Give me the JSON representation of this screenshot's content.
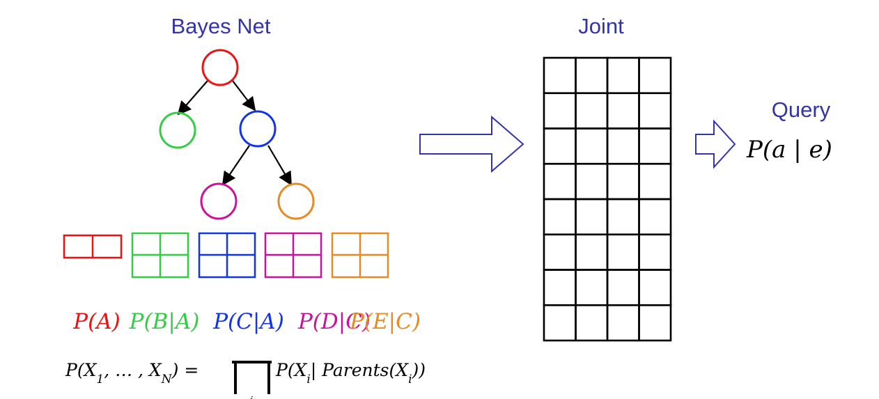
{
  "titles": {
    "bayes_net": "Bayes Net",
    "joint": "Joint",
    "query": "Query"
  },
  "colors": {
    "title": "#3333aa",
    "node_a": "#ee1111",
    "node_b": "#33cc44",
    "node_c": "#1133ee",
    "node_d": "#cc1199",
    "node_e": "#e88a22",
    "edge": "#000000",
    "grid": "#000000",
    "arrow": "#3333aa"
  },
  "graph": {
    "nodes": [
      "A",
      "B",
      "C",
      "D",
      "E"
    ],
    "edges": [
      [
        "A",
        "B"
      ],
      [
        "A",
        "C"
      ],
      [
        "C",
        "D"
      ],
      [
        "C",
        "E"
      ]
    ]
  },
  "factors": [
    {
      "label": "P(A)",
      "color": "#ee1111",
      "rows": 1,
      "cols": 2
    },
    {
      "label": "P(B|A)",
      "color": "#33cc44",
      "rows": 2,
      "cols": 2
    },
    {
      "label": "P(C|A)",
      "color": "#1133ee",
      "rows": 2,
      "cols": 2
    },
    {
      "label": "P(D|C)",
      "color": "#cc1199",
      "rows": 2,
      "cols": 2
    },
    {
      "label": "P(E|C)",
      "color": "#e88a22",
      "rows": 2,
      "cols": 2
    }
  ],
  "formula": {
    "lhs": "P(X₁, … , X_N) =",
    "product_index": "i",
    "rhs": "P(X_i| Parents(X_i))"
  },
  "joint_table": {
    "rows": 8,
    "cols": 4
  },
  "query": "P(a | e)"
}
